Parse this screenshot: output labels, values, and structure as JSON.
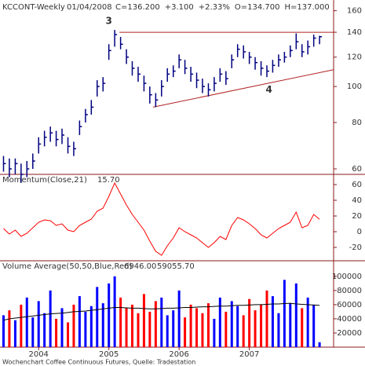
{
  "chart_data": [
    {
      "type": "ohlc",
      "title": "KCCONT-Weekly",
      "date": "01/04/2008",
      "header": [
        {
          "text": "C=136.200",
          "color": "#008000"
        },
        {
          "text": "+3.100",
          "color": "#008000"
        },
        {
          "text": "+2.33%",
          "color": "#008000"
        },
        {
          "text": "O=134.700",
          "color": "#008000"
        },
        {
          "text": "H=137.000",
          "color": "#008000"
        }
      ],
      "color": "#000080",
      "log_scale": true,
      "ylim": [
        58,
        171
      ],
      "yticks": [
        60,
        80,
        100,
        120,
        140,
        160
      ],
      "x": [
        2003.5,
        2003.583,
        2003.667,
        2003.75,
        2003.833,
        2003.917,
        2004.0,
        2004.083,
        2004.167,
        2004.25,
        2004.333,
        2004.417,
        2004.5,
        2004.583,
        2004.667,
        2004.75,
        2004.833,
        2004.917,
        2005.0,
        2005.083,
        2005.167,
        2005.25,
        2005.333,
        2005.417,
        2005.5,
        2005.583,
        2005.667,
        2005.75,
        2005.833,
        2005.917,
        2006.0,
        2006.083,
        2006.167,
        2006.25,
        2006.333,
        2006.417,
        2006.5,
        2006.583,
        2006.667,
        2006.75,
        2006.833,
        2006.917,
        2007.0,
        2007.083,
        2007.167,
        2007.25,
        2007.333,
        2007.417,
        2007.5,
        2007.583,
        2007.667,
        2007.75,
        2007.833,
        2007.917,
        2008.0
      ],
      "high": [
        65,
        64,
        64,
        62,
        63,
        66,
        73,
        76,
        78,
        76,
        77,
        73,
        71,
        81,
        87,
        92,
        104,
        106,
        130,
        142,
        136,
        126,
        117,
        113,
        107,
        100,
        96,
        104,
        112,
        114,
        122,
        118,
        113,
        109,
        105,
        102,
        106,
        112,
        110,
        122,
        130,
        129,
        124,
        120,
        117,
        114,
        118,
        122,
        124,
        129,
        139,
        130,
        133,
        138,
        137
      ],
      "low": [
        59,
        57,
        58,
        55,
        57,
        60,
        66,
        69,
        71,
        69,
        70,
        66,
        65,
        74,
        80,
        84,
        94,
        97,
        118,
        128,
        126,
        115,
        107,
        103,
        97,
        90,
        88,
        94,
        103,
        106,
        112,
        108,
        103,
        99,
        96,
        94,
        97,
        103,
        101,
        112,
        120,
        119,
        115,
        111,
        107,
        106,
        109,
        113,
        116,
        120,
        126,
        120,
        122,
        128,
        130
      ],
      "close": [
        62,
        60,
        62,
        58,
        60,
        63,
        70,
        73,
        75,
        72,
        74,
        69,
        68,
        78,
        84,
        88,
        100,
        102,
        125,
        138,
        130,
        120,
        112,
        108,
        102,
        95,
        92,
        100,
        108,
        110,
        118,
        112,
        108,
        104,
        100,
        98,
        102,
        108,
        105,
        118,
        126,
        124,
        120,
        116,
        112,
        110,
        114,
        118,
        120,
        125,
        132,
        124,
        128,
        135,
        136.2
      ],
      "trend_color": "#b22222",
      "lines": [
        {
          "x": [
            2005.15,
            2008.2
          ],
          "y": [
            140,
            140
          ]
        },
        {
          "x": [
            2005.63,
            2008.2
          ],
          "y": [
            88,
            111
          ]
        }
      ],
      "annotation_color": "#008000",
      "annotations": [
        {
          "text": "3",
          "x": 2005.0,
          "y": 150
        },
        {
          "text": "4",
          "x": 2007.28,
          "y": 98
        }
      ]
    },
    {
      "type": "line",
      "title": "Momentum(Close,21)",
      "last": "15.70",
      "color": "#ff0000",
      "ylim": [
        -37,
        73
      ],
      "yticks": [
        -20,
        0,
        20,
        40,
        60
      ],
      "values": [
        4,
        -3,
        2,
        -6,
        -2,
        5,
        12,
        15,
        14,
        8,
        10,
        2,
        0,
        8,
        12,
        16,
        26,
        30,
        45,
        62,
        48,
        34,
        22,
        12,
        2,
        -12,
        -25,
        -30,
        -18,
        -8,
        5,
        0,
        -4,
        -8,
        -14,
        -20,
        -14,
        -6,
        -10,
        8,
        18,
        15,
        10,
        4,
        -4,
        -8,
        -2,
        4,
        8,
        12,
        25,
        5,
        8,
        22,
        15.7
      ]
    },
    {
      "type": "volume",
      "title": "Volume Average(50,50,Blue,Red)",
      "last": "6946.00",
      "last_average": "59055.70",
      "up_color": "#0000ff",
      "down_color": "#ff0000",
      "average_color": "#000000",
      "ylim": [
        0,
        122000
      ],
      "yticks": [
        20000,
        40000,
        60000,
        80000,
        100000
      ],
      "xlim": [
        2003.45,
        2008.2
      ],
      "xticks": [
        {
          "value": 2004,
          "label": "2004"
        },
        {
          "value": 2005,
          "label": "2005"
        },
        {
          "value": 2006,
          "label": "2006"
        },
        {
          "value": 2007,
          "label": "2007"
        }
      ],
      "values": [
        45000,
        52000,
        38000,
        60000,
        70000,
        42000,
        65000,
        48000,
        80000,
        40000,
        55000,
        35000,
        60000,
        72000,
        50000,
        58000,
        85000,
        62000,
        90000,
        100000,
        70000,
        55000,
        60000,
        48000,
        75000,
        50000,
        65000,
        70000,
        45000,
        52000,
        80000,
        42000,
        60000,
        55000,
        48000,
        62000,
        40000,
        70000,
        50000,
        65000,
        58000,
        45000,
        68000,
        52000,
        60000,
        80000,
        72000,
        48000,
        95000,
        62000,
        90000,
        55000,
        70000,
        60000,
        6946
      ],
      "average": [
        38000,
        40000,
        41000,
        42000,
        43000,
        44000,
        45000,
        46000,
        47000,
        47500,
        48000,
        49000,
        50000,
        50500,
        51000,
        52000,
        53000,
        54000,
        55000,
        56000,
        56000,
        55500,
        55000,
        55000,
        54500,
        54000,
        54000,
        54500,
        55000,
        55000,
        55500,
        56000,
        56000,
        56500,
        57000,
        57000,
        57500,
        58000,
        58000,
        58500,
        59000,
        59000,
        59500,
        60000,
        60000,
        60500,
        61000,
        61000,
        61500,
        62000,
        61000,
        60500,
        60000,
        59500,
        59055.7
      ]
    }
  ],
  "footer": "Wochenchart Coffee Continuous Futures, Quelle: Tradestation"
}
